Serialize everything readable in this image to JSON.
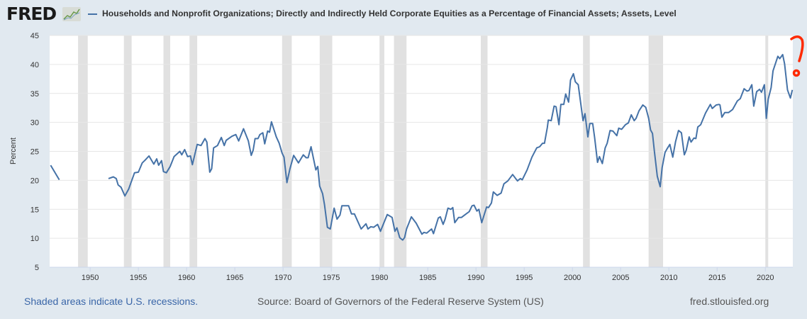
{
  "header": {
    "logo_text": "FRED",
    "series_title": "Households and Nonprofit Organizations; Directly and Indirectly Held Corporate Equities as a Percentage of Financial Assets; Assets, Level"
  },
  "footer": {
    "recession_note": "Shaded areas indicate U.S. recessions.",
    "source": "Source: Board of Governors of the Federal Reserve System (US)",
    "site": "fred.stlouisfed.org"
  },
  "annotation": {
    "text": "?",
    "color": "#ff2a00"
  },
  "colors": {
    "line": "#4572a7",
    "recession": "#e1e1e1",
    "grid": "#e6e6e6",
    "background": "#e1e9f0"
  },
  "chart_data": {
    "type": "line",
    "title": "Households and Nonprofit Organizations; Directly and Indirectly Held Corporate Equities as a Percentage of Financial Assets; Assets, Level",
    "xlabel": "",
    "ylabel": "Percent",
    "xlim": [
      1945.8,
      2022.85
    ],
    "ylim": [
      5,
      45
    ],
    "yticks": [
      5,
      10,
      15,
      20,
      25,
      30,
      35,
      40,
      45
    ],
    "xticks": [
      1950,
      1955,
      1960,
      1965,
      1970,
      1975,
      1980,
      1985,
      1990,
      1995,
      2000,
      2005,
      2010,
      2015,
      2020
    ],
    "grid": true,
    "legend": "top-left",
    "recessions": [
      [
        1948.75,
        1949.75
      ],
      [
        1953.5,
        1954.3
      ],
      [
        1957.6,
        1958.3
      ],
      [
        1960.3,
        1961.1
      ],
      [
        1969.9,
        1970.9
      ],
      [
        1973.8,
        1975.1
      ],
      [
        1980.0,
        1980.5
      ],
      [
        1981.5,
        1982.8
      ],
      [
        1990.5,
        1991.2
      ],
      [
        2001.1,
        2001.8
      ],
      [
        2007.9,
        2009.4
      ],
      [
        2020.0,
        2020.3
      ]
    ],
    "series": [
      {
        "name": "segment-1",
        "points": [
          [
            1945.9,
            22.6
          ],
          [
            1946.8,
            20.1
          ]
        ]
      },
      {
        "name": "segment-2",
        "points": [
          [
            1951.9,
            20.3
          ],
          [
            1952.4,
            20.6
          ],
          [
            1952.7,
            20.3
          ],
          [
            1952.9,
            19.2
          ],
          [
            1953.2,
            18.8
          ],
          [
            1953.6,
            17.3
          ],
          [
            1954.0,
            18.5
          ],
          [
            1954.6,
            21.3
          ],
          [
            1955.0,
            21.4
          ],
          [
            1955.4,
            23.0
          ],
          [
            1955.7,
            23.5
          ],
          [
            1956.1,
            24.2
          ],
          [
            1956.6,
            22.8
          ],
          [
            1956.9,
            23.7
          ],
          [
            1957.1,
            22.6
          ],
          [
            1957.4,
            23.4
          ],
          [
            1957.6,
            21.5
          ],
          [
            1957.9,
            21.3
          ],
          [
            1958.3,
            22.4
          ],
          [
            1958.7,
            24.1
          ],
          [
            1959.3,
            25.0
          ],
          [
            1959.5,
            24.4
          ],
          [
            1959.8,
            25.3
          ],
          [
            1960.1,
            24.1
          ],
          [
            1960.4,
            24.2
          ],
          [
            1960.6,
            22.7
          ],
          [
            1961.1,
            26.2
          ],
          [
            1961.5,
            26.0
          ],
          [
            1961.9,
            27.2
          ],
          [
            1962.1,
            26.6
          ],
          [
            1962.4,
            21.4
          ],
          [
            1962.6,
            22.0
          ],
          [
            1962.8,
            25.6
          ],
          [
            1963.2,
            26.0
          ],
          [
            1963.6,
            27.4
          ],
          [
            1963.9,
            26.0
          ],
          [
            1964.1,
            26.9
          ],
          [
            1964.7,
            27.6
          ],
          [
            1965.1,
            27.9
          ],
          [
            1965.4,
            26.8
          ],
          [
            1965.9,
            28.9
          ],
          [
            1966.4,
            26.8
          ],
          [
            1966.7,
            24.3
          ],
          [
            1966.9,
            25.2
          ],
          [
            1967.1,
            27.2
          ],
          [
            1967.4,
            27.2
          ],
          [
            1967.6,
            27.9
          ],
          [
            1967.9,
            28.2
          ],
          [
            1968.1,
            26.3
          ],
          [
            1968.4,
            28.5
          ],
          [
            1968.6,
            28.3
          ],
          [
            1968.8,
            30.1
          ],
          [
            1969.3,
            27.5
          ],
          [
            1969.6,
            26.4
          ],
          [
            1969.9,
            24.7
          ],
          [
            1970.1,
            24.0
          ],
          [
            1970.4,
            19.6
          ],
          [
            1970.7,
            21.9
          ],
          [
            1971.1,
            24.3
          ],
          [
            1971.6,
            23.0
          ],
          [
            1972.1,
            24.4
          ],
          [
            1972.4,
            23.9
          ],
          [
            1972.6,
            23.9
          ],
          [
            1972.9,
            25.8
          ],
          [
            1973.4,
            21.8
          ],
          [
            1973.6,
            22.4
          ],
          [
            1973.8,
            19.0
          ],
          [
            1974.1,
            17.7
          ],
          [
            1974.3,
            15.8
          ],
          [
            1974.6,
            11.9
          ],
          [
            1974.9,
            11.6
          ],
          [
            1975.3,
            15.2
          ],
          [
            1975.6,
            13.3
          ],
          [
            1975.9,
            14.0
          ],
          [
            1976.1,
            15.6
          ],
          [
            1976.8,
            15.6
          ],
          [
            1977.1,
            14.2
          ],
          [
            1977.4,
            14.2
          ],
          [
            1978.1,
            11.6
          ],
          [
            1978.6,
            12.5
          ],
          [
            1978.8,
            11.6
          ],
          [
            1979.1,
            12.0
          ],
          [
            1979.4,
            11.9
          ],
          [
            1979.8,
            12.4
          ],
          [
            1980.1,
            11.2
          ],
          [
            1980.8,
            14.1
          ],
          [
            1981.3,
            13.6
          ],
          [
            1981.6,
            11.2
          ],
          [
            1981.8,
            11.8
          ],
          [
            1982.1,
            10.1
          ],
          [
            1982.4,
            9.7
          ],
          [
            1982.6,
            10.1
          ],
          [
            1982.8,
            11.6
          ],
          [
            1983.3,
            13.7
          ],
          [
            1983.8,
            12.6
          ],
          [
            1984.4,
            10.7
          ],
          [
            1984.6,
            11.0
          ],
          [
            1984.9,
            10.9
          ],
          [
            1985.4,
            11.6
          ],
          [
            1985.6,
            10.8
          ],
          [
            1986.1,
            13.5
          ],
          [
            1986.3,
            13.7
          ],
          [
            1986.6,
            12.4
          ],
          [
            1986.8,
            13.3
          ],
          [
            1987.1,
            15.2
          ],
          [
            1987.4,
            15.0
          ],
          [
            1987.6,
            15.3
          ],
          [
            1987.8,
            12.7
          ],
          [
            1988.2,
            13.6
          ],
          [
            1988.5,
            13.6
          ],
          [
            1988.9,
            14.1
          ],
          [
            1989.3,
            14.6
          ],
          [
            1989.6,
            15.6
          ],
          [
            1989.8,
            15.7
          ],
          [
            1990.1,
            14.7
          ],
          [
            1990.3,
            15.0
          ],
          [
            1990.6,
            12.7
          ],
          [
            1991.1,
            15.4
          ],
          [
            1991.3,
            15.3
          ],
          [
            1991.6,
            16.1
          ],
          [
            1991.8,
            18.0
          ],
          [
            1992.2,
            17.4
          ],
          [
            1992.6,
            17.8
          ],
          [
            1992.9,
            19.4
          ],
          [
            1993.3,
            19.9
          ],
          [
            1993.8,
            21.0
          ],
          [
            1994.3,
            19.9
          ],
          [
            1994.6,
            20.3
          ],
          [
            1994.8,
            20.1
          ],
          [
            1995.3,
            21.8
          ],
          [
            1995.8,
            24.0
          ],
          [
            1996.3,
            25.6
          ],
          [
            1996.6,
            25.8
          ],
          [
            1996.9,
            26.4
          ],
          [
            1997.1,
            26.4
          ],
          [
            1997.4,
            29.1
          ],
          [
            1997.5,
            30.4
          ],
          [
            1997.8,
            30.3
          ],
          [
            1998.1,
            32.8
          ],
          [
            1998.3,
            32.7
          ],
          [
            1998.6,
            29.6
          ],
          [
            1998.8,
            33.1
          ],
          [
            1999.1,
            33.1
          ],
          [
            1999.3,
            34.9
          ],
          [
            1999.6,
            33.5
          ],
          [
            1999.8,
            37.3
          ],
          [
            2000.1,
            38.4
          ],
          [
            2000.3,
            37.0
          ],
          [
            2000.6,
            36.5
          ],
          [
            2001.1,
            30.3
          ],
          [
            2001.3,
            31.5
          ],
          [
            2001.6,
            27.5
          ],
          [
            2001.8,
            29.8
          ],
          [
            2002.1,
            29.8
          ],
          [
            2002.3,
            27.4
          ],
          [
            2002.6,
            23.1
          ],
          [
            2002.8,
            24.1
          ],
          [
            2003.1,
            22.9
          ],
          [
            2003.4,
            25.6
          ],
          [
            2003.6,
            26.4
          ],
          [
            2003.9,
            28.6
          ],
          [
            2004.2,
            28.5
          ],
          [
            2004.6,
            27.7
          ],
          [
            2004.8,
            29.0
          ],
          [
            2005.1,
            28.8
          ],
          [
            2005.5,
            29.6
          ],
          [
            2005.8,
            29.9
          ],
          [
            2006.1,
            31.3
          ],
          [
            2006.4,
            30.3
          ],
          [
            2006.6,
            30.7
          ],
          [
            2006.9,
            32.0
          ],
          [
            2007.3,
            33.0
          ],
          [
            2007.6,
            32.6
          ],
          [
            2007.9,
            30.7
          ],
          [
            2008.1,
            28.7
          ],
          [
            2008.3,
            28.1
          ],
          [
            2008.5,
            25.0
          ],
          [
            2008.8,
            20.7
          ],
          [
            2009.1,
            18.9
          ],
          [
            2009.3,
            22.2
          ],
          [
            2009.6,
            24.8
          ],
          [
            2009.8,
            25.4
          ],
          [
            2010.1,
            26.2
          ],
          [
            2010.4,
            24.0
          ],
          [
            2010.7,
            26.7
          ],
          [
            2011.0,
            28.6
          ],
          [
            2011.3,
            28.2
          ],
          [
            2011.6,
            24.4
          ],
          [
            2011.8,
            25.2
          ],
          [
            2012.1,
            27.5
          ],
          [
            2012.3,
            26.6
          ],
          [
            2012.6,
            27.3
          ],
          [
            2012.8,
            27.2
          ],
          [
            2013.0,
            29.2
          ],
          [
            2013.3,
            29.6
          ],
          [
            2013.8,
            31.6
          ],
          [
            2014.3,
            33.1
          ],
          [
            2014.5,
            32.4
          ],
          [
            2014.9,
            33.0
          ],
          [
            2015.2,
            33.1
          ],
          [
            2015.3,
            33.0
          ],
          [
            2015.5,
            30.9
          ],
          [
            2015.8,
            31.7
          ],
          [
            2016.2,
            31.7
          ],
          [
            2016.6,
            32.2
          ],
          [
            2017.1,
            33.7
          ],
          [
            2017.4,
            34.1
          ],
          [
            2017.8,
            35.8
          ],
          [
            2018.1,
            35.4
          ],
          [
            2018.3,
            35.5
          ],
          [
            2018.6,
            36.5
          ],
          [
            2018.8,
            32.8
          ],
          [
            2019.1,
            35.3
          ],
          [
            2019.4,
            35.7
          ],
          [
            2019.6,
            35.2
          ],
          [
            2019.9,
            36.5
          ],
          [
            2020.1,
            30.7
          ],
          [
            2020.3,
            34.0
          ],
          [
            2020.6,
            36.0
          ],
          [
            2020.8,
            38.9
          ],
          [
            2021.3,
            41.4
          ],
          [
            2021.5,
            41.0
          ],
          [
            2021.8,
            41.7
          ],
          [
            2022.0,
            40.1
          ],
          [
            2022.3,
            35.6
          ],
          [
            2022.6,
            34.2
          ],
          [
            2022.8,
            35.6
          ]
        ]
      }
    ]
  }
}
